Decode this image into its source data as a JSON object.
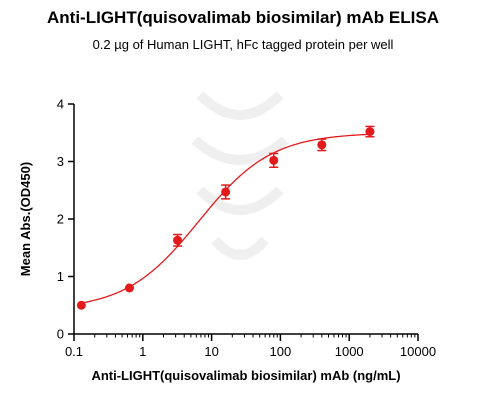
{
  "chart_data": {
    "type": "scatter",
    "title": "Anti-LIGHT(quisovalimab biosimilar) mAb ELISA",
    "subtitle": "0.2 µg of Human LIGHT, hFc tagged protein per well",
    "xlabel": "Anti-LIGHT(quisovalimab biosimilar) mAb (ng/mL)",
    "ylabel": "Mean Abs.(OD450)",
    "x_scale": "log",
    "xlim": [
      0.1,
      10000
    ],
    "ylim": [
      0,
      4
    ],
    "x_ticks": [
      0.1,
      1,
      10,
      100,
      1000,
      10000
    ],
    "x_tick_labels": [
      "0.1",
      "1",
      "10",
      "100",
      "1000",
      "10000"
    ],
    "y_ticks": [
      0,
      1,
      2,
      3,
      4
    ],
    "y_tick_labels": [
      "0",
      "1",
      "2",
      "3",
      "4"
    ],
    "grid": false,
    "series": [
      {
        "x": [
          0.128,
          0.64,
          3.2,
          16,
          80,
          400,
          2000
        ],
        "y": [
          0.5,
          0.8,
          1.63,
          2.47,
          3.02,
          3.29,
          3.52
        ],
        "error": [
          0.0,
          0.0,
          0.1,
          0.12,
          0.12,
          0.1,
          0.09
        ],
        "fit": {
          "model": "4PL",
          "bottom": 0.42,
          "top": 3.5,
          "ec50": 6.5,
          "hill": 0.82
        }
      }
    ],
    "color": "#e31a1c"
  }
}
